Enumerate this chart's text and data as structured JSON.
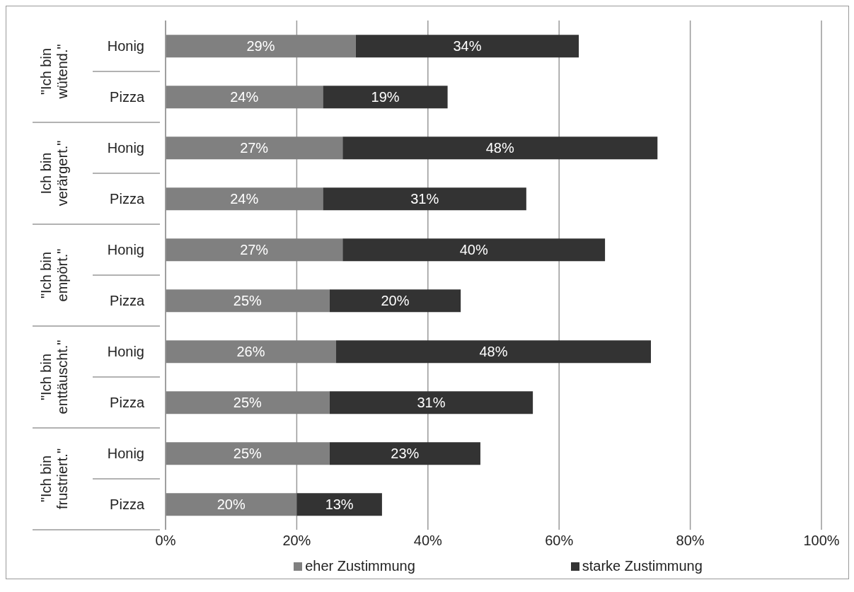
{
  "chart_data": {
    "type": "bar",
    "orientation": "horizontal",
    "stacked": true,
    "categories": [
      "Honig",
      "Pizza",
      "Honig",
      "Pizza",
      "Honig",
      "Pizza",
      "Honig",
      "Pizza",
      "Honig",
      "Pizza"
    ],
    "annotations": [
      "\"Ich bin\nwütend.\"",
      "Ich bin\nverärgert.\"",
      "\"Ich bin\nempört.\"",
      "\"Ich bin\nenttäuscht.\"",
      "\"Ich bin\nfrustriert.\""
    ],
    "series": [
      {
        "name": "eher Zustimmung",
        "color": "#808080",
        "values": [
          29,
          24,
          27,
          24,
          27,
          25,
          26,
          25,
          25,
          20
        ],
        "value_labels": [
          "29%",
          "24%",
          "27%",
          "24%",
          "27%",
          "25%",
          "26%",
          "25%",
          "25%",
          "20%"
        ]
      },
      {
        "name": "starke Zustimmung",
        "color": "#333333",
        "values": [
          34,
          19,
          48,
          31,
          40,
          20,
          48,
          31,
          23,
          13
        ],
        "value_labels": [
          "34%",
          "19%",
          "48%",
          "31%",
          "40%",
          "20%",
          "48%",
          "31%",
          "23%",
          "13%"
        ]
      }
    ],
    "xlim": [
      0,
      100
    ],
    "xticks": [
      {
        "value": 0,
        "label": "0%"
      },
      {
        "value": 20,
        "label": "20%"
      },
      {
        "value": 40,
        "label": "40%"
      },
      {
        "value": 60,
        "label": "60%"
      },
      {
        "value": 80,
        "label": "80%"
      },
      {
        "value": 100,
        "label": "100%"
      }
    ],
    "grid": "x",
    "legend": "bottom"
  }
}
